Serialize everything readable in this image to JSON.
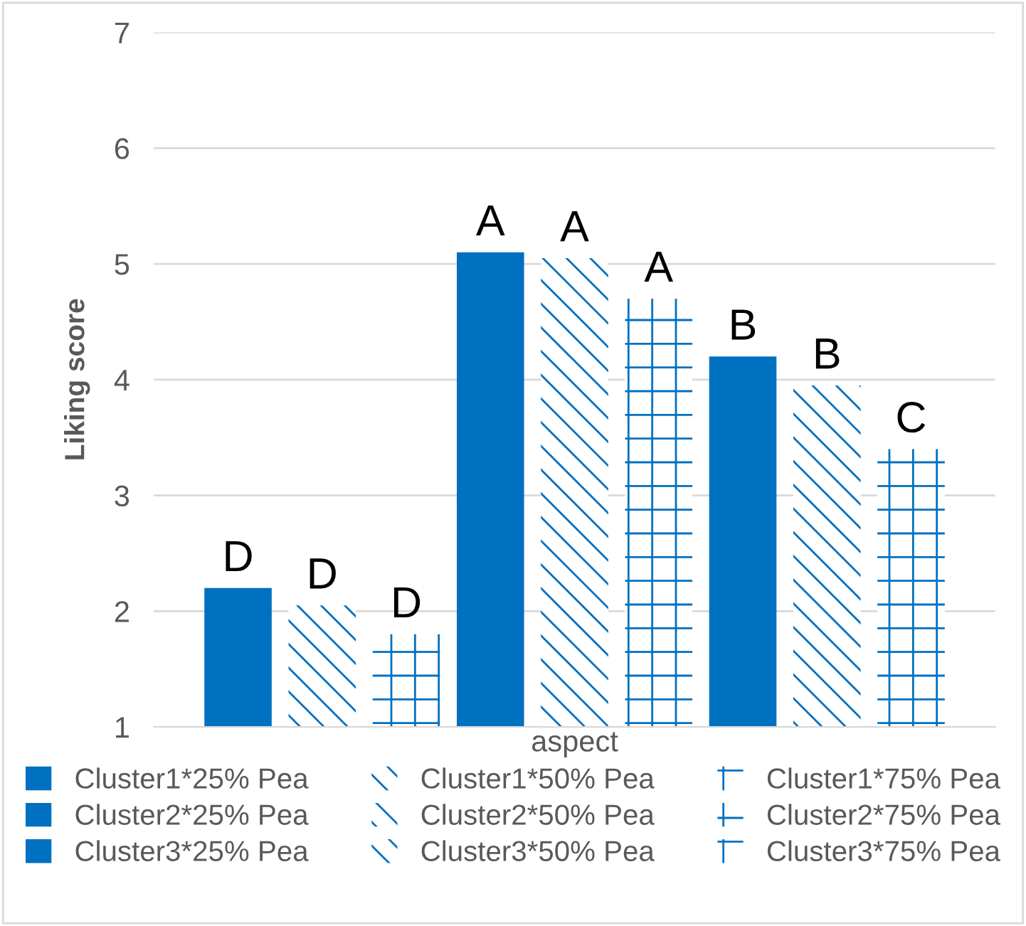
{
  "chart_data": {
    "type": "bar",
    "ylabel": "Liking score",
    "xlabel": "aspect",
    "categories": [
      null
    ],
    "ylim": [
      1,
      7
    ],
    "yticks": [
      1,
      2,
      3,
      4,
      5,
      6,
      7
    ],
    "grid": "y",
    "legend": "bottom",
    "series": [
      {
        "name": "Cluster1*25% Pea",
        "color": "#0070c0",
        "values": [
          2.2
        ],
        "value_labels": [
          "D"
        ]
      },
      {
        "name": "Cluster1*50% Pea",
        "color": "#0070c0",
        "values": [
          2.05
        ],
        "value_labels": [
          "D"
        ]
      },
      {
        "name": "Cluster1*75% Pea",
        "color": "#0070c0",
        "values": [
          1.8
        ],
        "value_labels": [
          "D"
        ]
      },
      {
        "name": "Cluster2*25% Pea",
        "color": "#0070c0",
        "values": [
          5.1
        ],
        "value_labels": [
          "A"
        ]
      },
      {
        "name": "Cluster2*50% Pea",
        "color": "#0070c0",
        "values": [
          5.05
        ],
        "value_labels": [
          "A"
        ]
      },
      {
        "name": "Cluster2*75% Pea",
        "color": "#0070c0",
        "values": [
          4.7
        ],
        "value_labels": [
          "A"
        ]
      },
      {
        "name": "Cluster3*25% Pea",
        "color": "#0070c0",
        "values": [
          4.2
        ],
        "value_labels": [
          "B"
        ]
      },
      {
        "name": "Cluster3*50% Pea",
        "color": "#0070c0",
        "values": [
          3.95
        ],
        "value_labels": [
          "B"
        ]
      },
      {
        "name": "Cluster3*75% Pea",
        "color": "#0070c0",
        "values": [
          3.4
        ],
        "value_labels": [
          "C"
        ]
      }
    ]
  }
}
